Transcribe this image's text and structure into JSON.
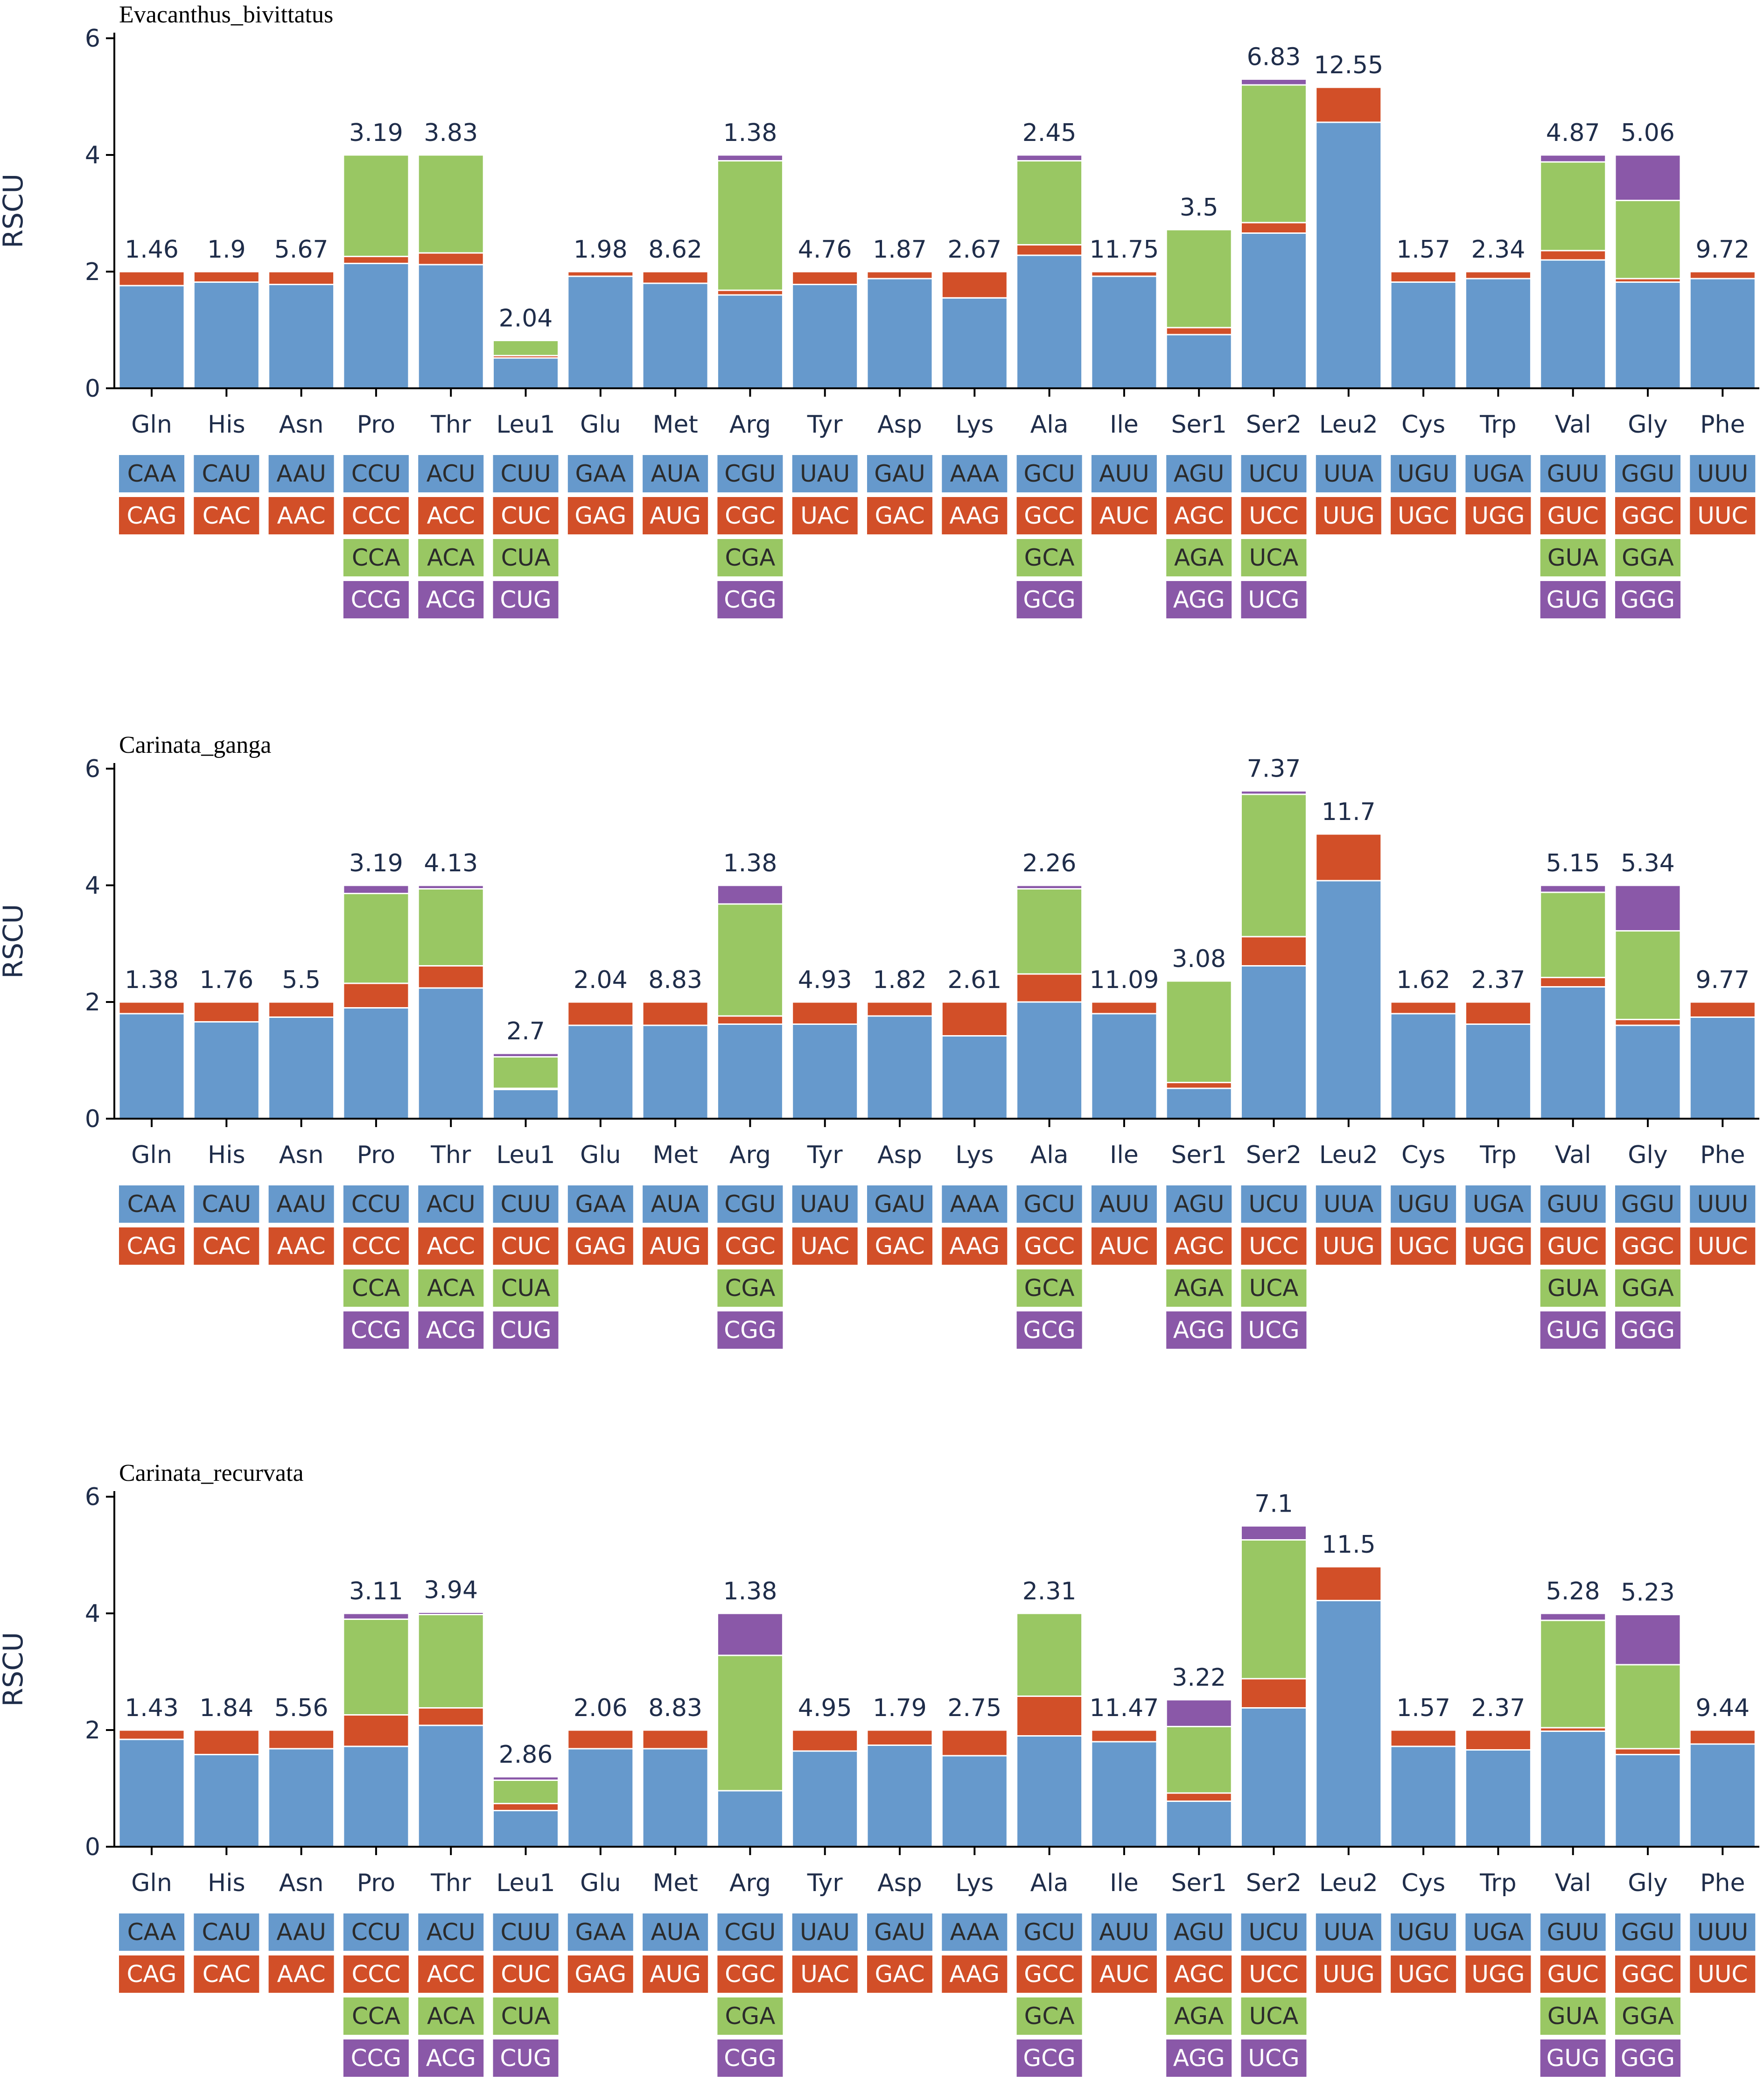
{
  "chart_data": {
    "type": "bar",
    "stacked": true,
    "ylabel": "RSCU",
    "ylim": [
      0,
      6.3
    ],
    "yticks": [
      0,
      2,
      4,
      6
    ],
    "amino_acids": [
      "Gln",
      "His",
      "Asn",
      "Pro",
      "Thr",
      "Leu1",
      "Glu",
      "Met",
      "Arg",
      "Tyr",
      "Asp",
      "Lys",
      "Ala",
      "Ile",
      "Ser1",
      "Ser2",
      "Leu2",
      "Cys",
      "Trp",
      "Val",
      "Gly",
      "Phe"
    ],
    "codons": [
      [
        "CAA",
        "CAG"
      ],
      [
        "CAU",
        "CAC"
      ],
      [
        "AAU",
        "AAC"
      ],
      [
        "CCU",
        "CCC",
        "CCA",
        "CCG"
      ],
      [
        "ACU",
        "ACC",
        "ACA",
        "ACG"
      ],
      [
        "CUU",
        "CUC",
        "CUA",
        "CUG"
      ],
      [
        "GAA",
        "GAG"
      ],
      [
        "AUA",
        "AUG"
      ],
      [
        "CGU",
        "CGC",
        "CGA",
        "CGG"
      ],
      [
        "UAU",
        "UAC"
      ],
      [
        "GAU",
        "GAC"
      ],
      [
        "AAA",
        "AAG"
      ],
      [
        "GCU",
        "GCC",
        "GCA",
        "GCG"
      ],
      [
        "AUU",
        "AUC"
      ],
      [
        "AGU",
        "AGC",
        "AGA",
        "AGG"
      ],
      [
        "UCU",
        "UCC",
        "UCA",
        "UCG"
      ],
      [
        "UUA",
        "UUG"
      ],
      [
        "UGU",
        "UGC"
      ],
      [
        "UGA",
        "UGG"
      ],
      [
        "GUU",
        "GUC",
        "GUA",
        "GUG"
      ],
      [
        "GGU",
        "GGC",
        "GGA",
        "GGG"
      ],
      [
        "UUU",
        "UUC"
      ]
    ],
    "segment_colors": [
      "#6699cc",
      "#d24f28",
      "#99c763",
      "#8a58a8"
    ],
    "codon_text_colors": [
      "#2b2b2b",
      "#ffffff",
      "#2b2b2b",
      "#ffffff"
    ],
    "panels": [
      {
        "title": "Evacanthus_bivittatus",
        "labels": [
          "1.46",
          "1.9",
          "5.67",
          "3.19",
          "3.83",
          "2.04",
          "1.98",
          "8.62",
          "1.38",
          "4.76",
          "1.87",
          "2.67",
          "2.45",
          "11.75",
          "3.5",
          "6.83",
          "12.55",
          "1.57",
          "2.34",
          "4.87",
          "5.06",
          "9.72"
        ],
        "rscu": [
          [
            1.76,
            0.24
          ],
          [
            1.82,
            0.18
          ],
          [
            1.78,
            0.22
          ],
          [
            2.14,
            0.12,
            1.74,
            0.0
          ],
          [
            2.12,
            0.2,
            1.68,
            0.0
          ],
          [
            0.52,
            0.04,
            0.26,
            0.0
          ],
          [
            1.92,
            0.08
          ],
          [
            1.8,
            0.2
          ],
          [
            1.6,
            0.08,
            2.22,
            0.1
          ],
          [
            1.78,
            0.22
          ],
          [
            1.88,
            0.12
          ],
          [
            1.55,
            0.45
          ],
          [
            2.28,
            0.18,
            1.44,
            0.1
          ],
          [
            1.92,
            0.08
          ],
          [
            0.92,
            0.12,
            1.68,
            0.0
          ],
          [
            2.66,
            0.18,
            2.36,
            0.1
          ],
          [
            4.56,
            0.6
          ],
          [
            1.82,
            0.18
          ],
          [
            1.88,
            0.12
          ],
          [
            2.2,
            0.16,
            1.52,
            0.12
          ],
          [
            1.82,
            0.06,
            1.34,
            0.78
          ],
          [
            1.88,
            0.12
          ]
        ]
      },
      {
        "title": "Carinata_ganga",
        "labels": [
          "1.38",
          "1.76",
          "5.5",
          "3.19",
          "4.13",
          "2.7",
          "2.04",
          "8.83",
          "1.38",
          "4.93",
          "1.82",
          "2.61",
          "2.26",
          "11.09",
          "3.08",
          "7.37",
          "11.7",
          "1.62",
          "2.37",
          "5.15",
          "5.34",
          "9.77"
        ],
        "rscu": [
          [
            1.8,
            0.2
          ],
          [
            1.66,
            0.34
          ],
          [
            1.74,
            0.26
          ],
          [
            1.9,
            0.42,
            1.54,
            0.14
          ],
          [
            2.24,
            0.38,
            1.32,
            0.06
          ],
          [
            0.5,
            0.02,
            0.54,
            0.06
          ],
          [
            1.6,
            0.4
          ],
          [
            1.6,
            0.4
          ],
          [
            1.62,
            0.14,
            1.92,
            0.32
          ],
          [
            1.62,
            0.38
          ],
          [
            1.76,
            0.24
          ],
          [
            1.42,
            0.58
          ],
          [
            2.0,
            0.48,
            1.46,
            0.06
          ],
          [
            1.8,
            0.2
          ],
          [
            0.52,
            0.1,
            1.74,
            0.0
          ],
          [
            2.62,
            0.5,
            2.44,
            0.06
          ],
          [
            4.08,
            0.8
          ],
          [
            1.8,
            0.2
          ],
          [
            1.62,
            0.38
          ],
          [
            2.26,
            0.16,
            1.46,
            0.12
          ],
          [
            1.6,
            0.1,
            1.52,
            0.78
          ],
          [
            1.74,
            0.26
          ]
        ]
      },
      {
        "title": "Carinata_recurvata",
        "labels": [
          "1.43",
          "1.84",
          "5.56",
          "3.11",
          "3.94",
          "2.86",
          "2.06",
          "8.83",
          "1.38",
          "4.95",
          "1.79",
          "2.75",
          "2.31",
          "11.47",
          "3.22",
          "7.1",
          "11.5",
          "1.57",
          "2.37",
          "5.28",
          "5.23",
          "9.44"
        ],
        "rscu": [
          [
            1.84,
            0.16
          ],
          [
            1.58,
            0.42
          ],
          [
            1.68,
            0.32
          ],
          [
            1.72,
            0.54,
            1.64,
            0.1
          ],
          [
            2.08,
            0.3,
            1.6,
            0.04
          ],
          [
            0.62,
            0.12,
            0.4,
            0.06
          ],
          [
            1.68,
            0.32
          ],
          [
            1.68,
            0.32
          ],
          [
            0.96,
            0.0,
            2.32,
            0.72
          ],
          [
            1.64,
            0.36
          ],
          [
            1.74,
            0.26
          ],
          [
            1.56,
            0.44
          ],
          [
            1.9,
            0.68,
            1.42,
            0.0
          ],
          [
            1.8,
            0.2
          ],
          [
            0.78,
            0.14,
            1.14,
            0.46
          ],
          [
            2.38,
            0.5,
            2.38,
            0.24
          ],
          [
            4.22,
            0.58
          ],
          [
            1.72,
            0.28
          ],
          [
            1.66,
            0.34
          ],
          [
            1.98,
            0.06,
            1.84,
            0.12
          ],
          [
            1.58,
            0.1,
            1.44,
            0.86
          ],
          [
            1.76,
            0.24
          ]
        ]
      }
    ]
  }
}
